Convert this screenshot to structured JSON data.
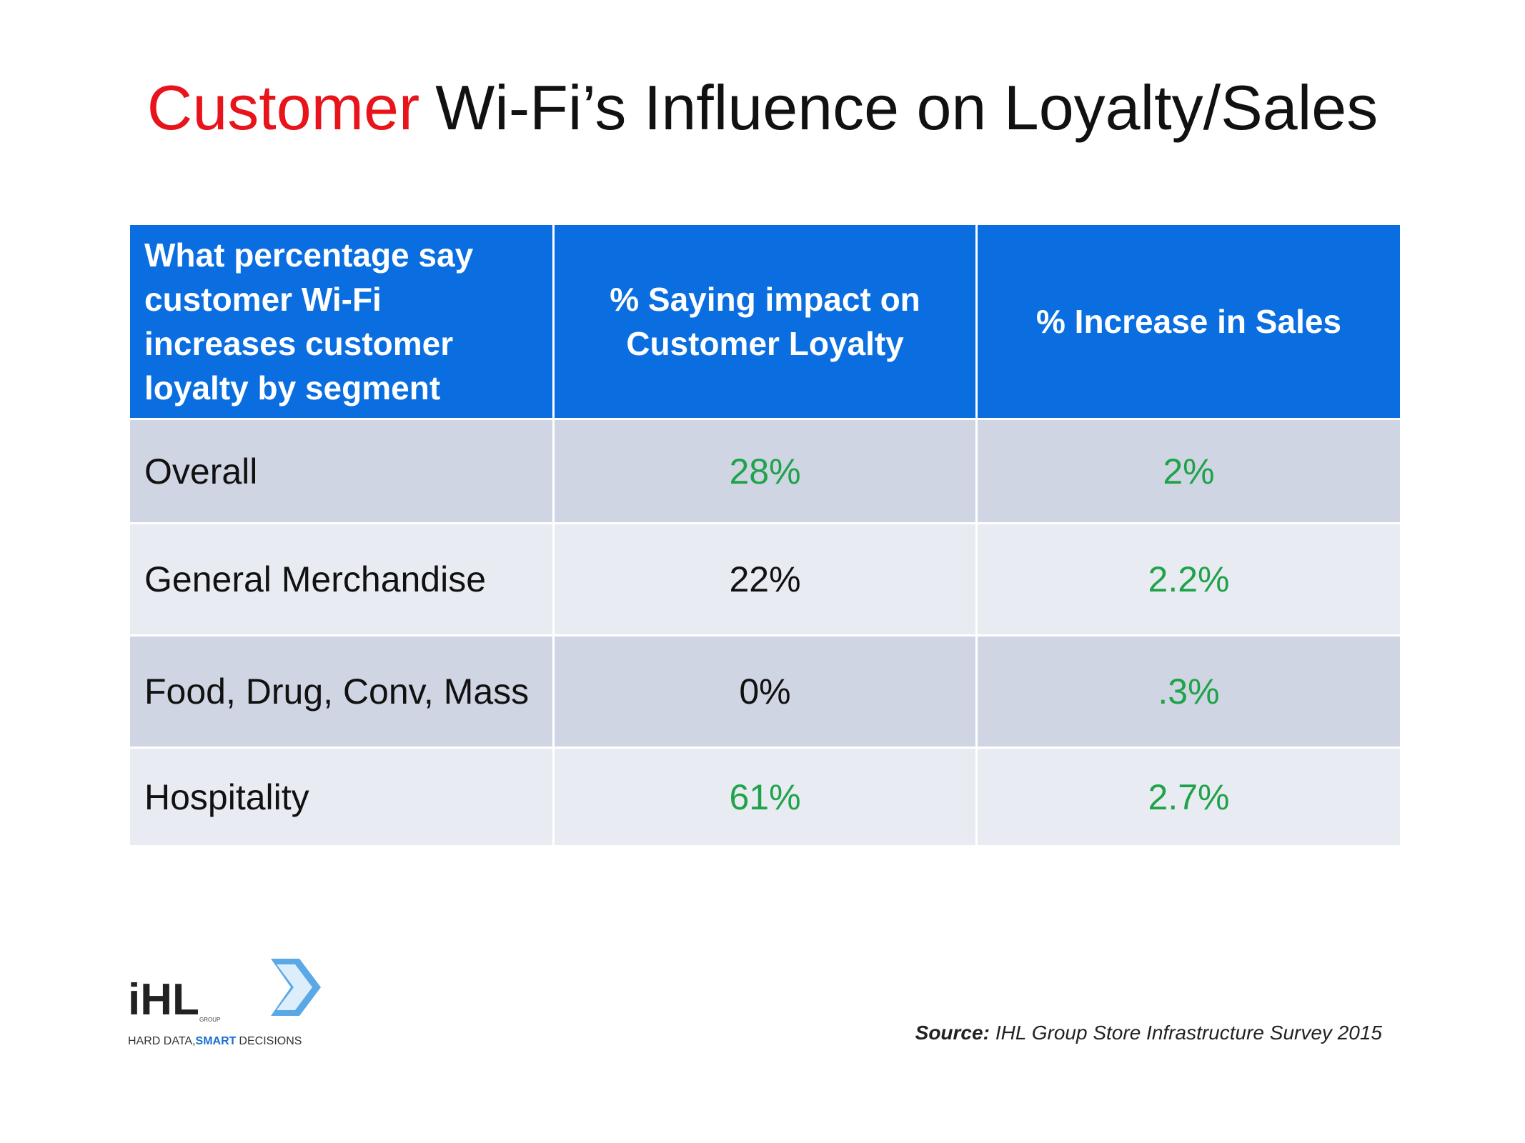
{
  "header": {
    "title_highlight": "Customer",
    "title_rest": "Wi-Fi’s Influence on Loyalty/Sales",
    "highlight_color": "#e8141b"
  },
  "table": {
    "header_color": "#0a6ee0",
    "columns": [
      "What percentage say customer Wi-Fi increases customer loyalty by segment",
      "% Saying impact on Customer Loyalty",
      "% Increase in Sales"
    ],
    "rows": [
      {
        "label": "Overall",
        "cells": [
          {
            "text": "28%",
            "color": "#1fa34a"
          },
          {
            "text": "2%",
            "color": "#1fa34a"
          }
        ]
      },
      {
        "label": "General Merchandise",
        "cells": [
          {
            "text": "22%",
            "color": "#111111"
          },
          {
            "text": "2.2%",
            "color": "#1fa34a"
          }
        ]
      },
      {
        "label": "Food, Drug, Conv, Mass",
        "cells": [
          {
            "text": "0%",
            "color": "#111111"
          },
          {
            "text": ".3%",
            "color": "#1fa34a"
          }
        ]
      },
      {
        "label": "Hospitality",
        "cells": [
          {
            "text": "61%",
            "color": "#1fa34a"
          },
          {
            "text": "2.7%",
            "color": "#1fa34a"
          }
        ]
      }
    ]
  },
  "logo": {
    "name": "iHL",
    "group": "GROUP",
    "tagline_start": "HARD DATA,",
    "tagline_bold": "SMART",
    "tagline_end": "DECISIONS"
  },
  "source": {
    "label": "Source:",
    "text": "IHL Group Store Infrastructure Survey 2015"
  }
}
